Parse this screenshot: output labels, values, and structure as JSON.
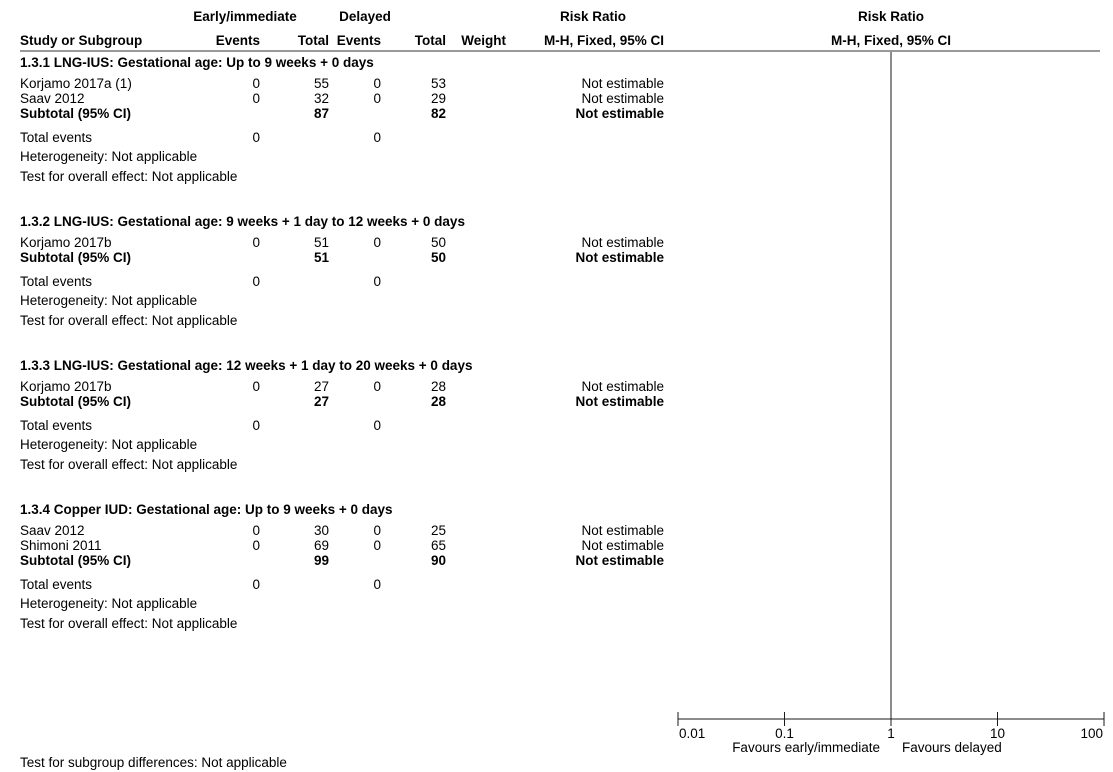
{
  "header": {
    "group1": "Early/immediate",
    "group2": "Delayed",
    "rr_title": "Risk Ratio",
    "rr_method": "M-H, Fixed, 95% CI",
    "plot_title": "Risk Ratio",
    "plot_method": "M-H, Fixed, 95% CI",
    "col_study": "Study or Subgroup",
    "col_events1": "Events",
    "col_total1": "Total",
    "col_events2": "Events",
    "col_total2": "Total",
    "col_weight": "Weight"
  },
  "subgroups": [
    {
      "title": "1.3.1 LNG-IUS: Gestational age: Up to 9 weeks + 0 days",
      "studies": [
        {
          "name": "Korjamo 2017a (1)",
          "events1": "0",
          "total1": "55",
          "events2": "0",
          "total2": "53",
          "rr": "Not estimable"
        },
        {
          "name": "Saav 2012",
          "events1": "0",
          "total1": "32",
          "events2": "0",
          "total2": "29",
          "rr": "Not estimable"
        }
      ],
      "subtotal": {
        "label": "Subtotal (95% CI)",
        "total1": "87",
        "total2": "82",
        "rr": "Not estimable"
      },
      "total_events": {
        "label": "Total events",
        "events1": "0",
        "events2": "0"
      },
      "heterogeneity": "Heterogeneity: Not applicable",
      "overall": "Test for overall effect: Not applicable"
    },
    {
      "title": "1.3.2 LNG-IUS: Gestational age: 9 weeks + 1 day to 12 weeks + 0 days",
      "studies": [
        {
          "name": "Korjamo 2017b",
          "events1": "0",
          "total1": "51",
          "events2": "0",
          "total2": "50",
          "rr": "Not estimable"
        }
      ],
      "subtotal": {
        "label": "Subtotal (95% CI)",
        "total1": "51",
        "total2": "50",
        "rr": "Not estimable"
      },
      "total_events": {
        "label": "Total events",
        "events1": "0",
        "events2": "0"
      },
      "heterogeneity": "Heterogeneity: Not applicable",
      "overall": "Test for overall effect: Not applicable"
    },
    {
      "title": "1.3.3 LNG-IUS: Gestational age: 12 weeks + 1 day to 20 weeks + 0 days",
      "studies": [
        {
          "name": "Korjamo 2017b",
          "events1": "0",
          "total1": "27",
          "events2": "0",
          "total2": "28",
          "rr": "Not estimable"
        }
      ],
      "subtotal": {
        "label": "Subtotal (95% CI)",
        "total1": "27",
        "total2": "28",
        "rr": "Not estimable"
      },
      "total_events": {
        "label": "Total events",
        "events1": "0",
        "events2": "0"
      },
      "heterogeneity": "Heterogeneity: Not applicable",
      "overall": "Test for overall effect: Not applicable"
    },
    {
      "title": "1.3.4 Copper IUD: Gestational age: Up to 9 weeks + 0 days",
      "studies": [
        {
          "name": "Saav 2012",
          "events1": "0",
          "total1": "30",
          "events2": "0",
          "total2": "25",
          "rr": "Not estimable"
        },
        {
          "name": "Shimoni 2011",
          "events1": "0",
          "total1": "69",
          "events2": "0",
          "total2": "65",
          "rr": "Not estimable"
        }
      ],
      "subtotal": {
        "label": "Subtotal (95% CI)",
        "total1": "99",
        "total2": "90",
        "rr": "Not estimable"
      },
      "total_events": {
        "label": "Total events",
        "events1": "0",
        "events2": "0"
      },
      "heterogeneity": "Heterogeneity: Not applicable",
      "overall": "Test for overall effect: Not applicable"
    }
  ],
  "footer": {
    "subgroup_differences": "Test for subgroup differences: Not applicable"
  },
  "chart_data": {
    "type": "forest",
    "scale": "log",
    "xlim": [
      0.01,
      100
    ],
    "ticks": [
      0.01,
      0.1,
      1,
      10,
      100
    ],
    "tick_labels": [
      "0.01",
      "0.1",
      "1",
      "10",
      "100"
    ],
    "reference_line": 1,
    "favours_left": "Favours early/immediate",
    "favours_right": "Favours delayed",
    "estimates": []
  }
}
